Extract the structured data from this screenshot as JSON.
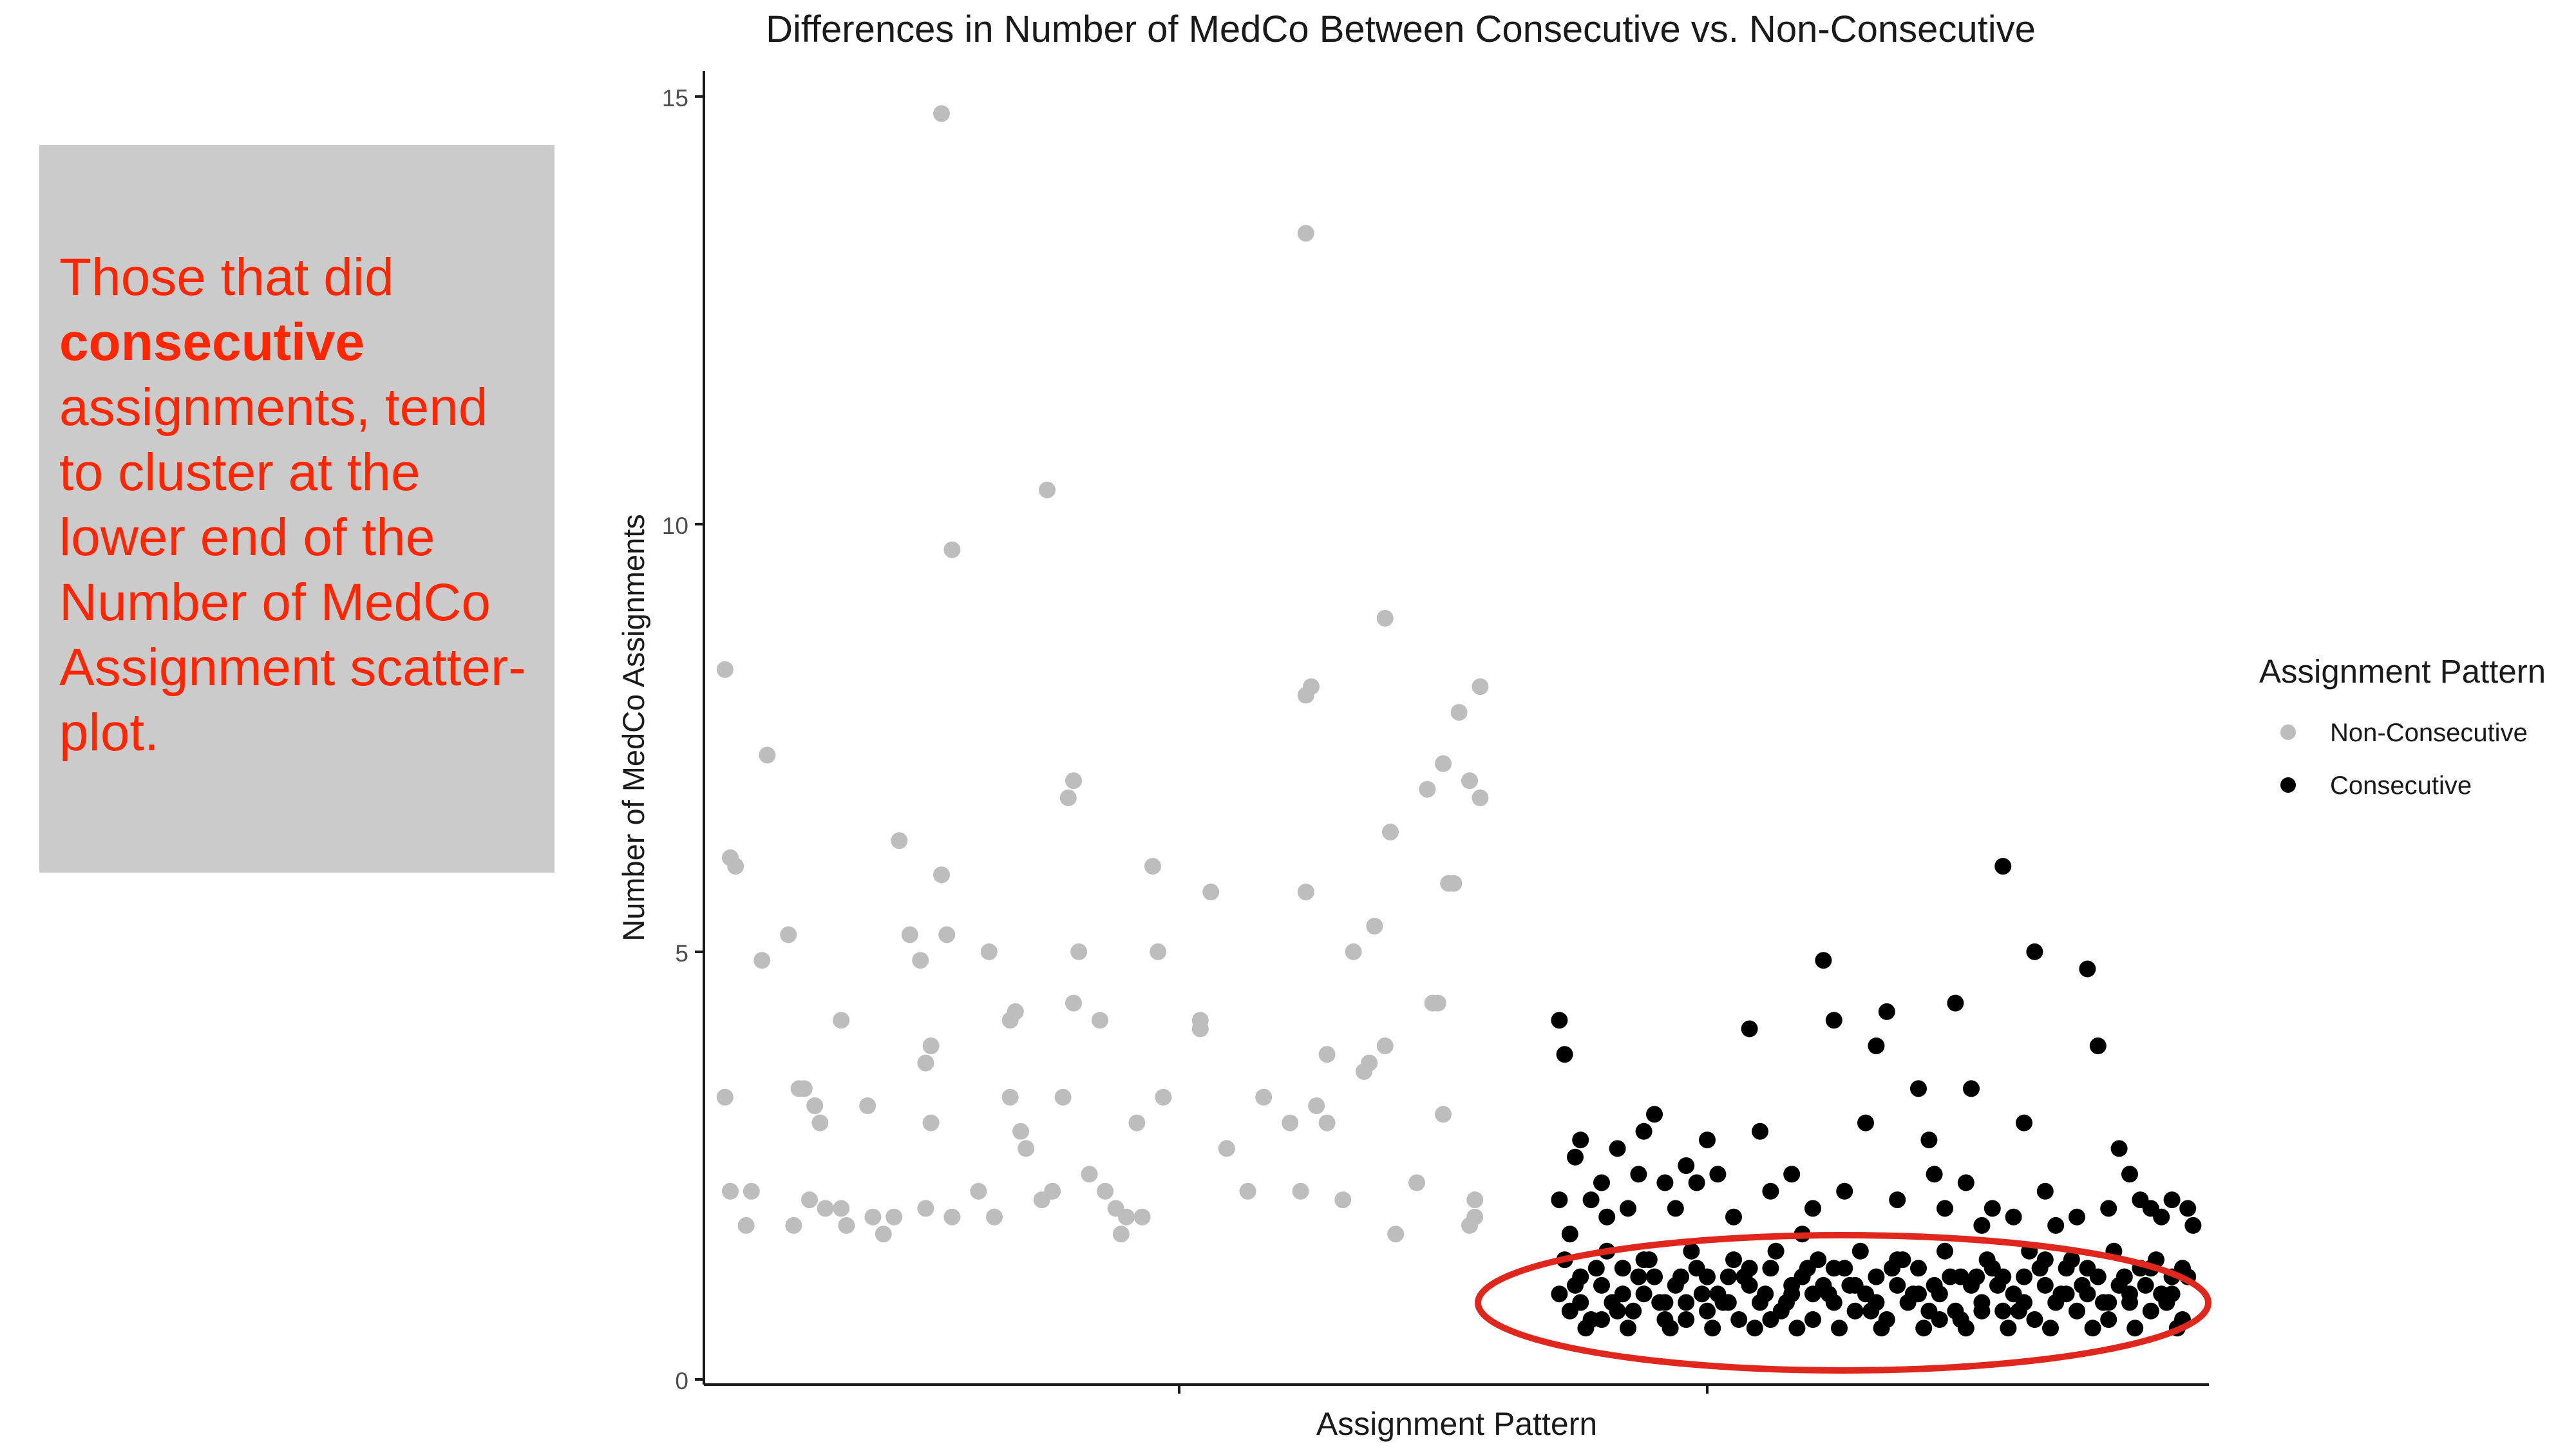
{
  "callout": {
    "line_before": "Those that did",
    "emphasis": "consecutive",
    "line_after": "assignments, tend to cluster at the lower end of the Number of MedCo Assignment scatter-plot.",
    "background": "#cbcbcb",
    "text_color": "#ff2600"
  },
  "highlight_ellipse": {
    "color": "#e0271d"
  },
  "chart_data": {
    "type": "scatter",
    "title": "Differences in Number of MedCo Between Consecutive vs. Non-Consecutive",
    "xlabel": "Assignment Pattern",
    "ylabel": "Number of MedCo Assignments",
    "ylim": [
      0,
      15.3
    ],
    "yticks": [
      0,
      5,
      10,
      15
    ],
    "grid": false,
    "legend": {
      "title": "Assignment Pattern",
      "position": "right",
      "entries": [
        {
          "label": "Non-Consecutive",
          "color": "#bdbdbd"
        },
        {
          "label": "Consecutive",
          "color": "#000000"
        }
      ]
    },
    "series": [
      {
        "name": "Non-Consecutive",
        "color": "#bdbdbd",
        "x_center": 1,
        "jitter": 0.4,
        "points": [
          [
            0.64,
            8.3
          ],
          [
            0.65,
            6.1
          ],
          [
            0.66,
            6.0
          ],
          [
            0.64,
            3.3
          ],
          [
            0.65,
            2.2
          ],
          [
            0.68,
            1.8
          ],
          [
            0.69,
            2.2
          ],
          [
            0.72,
            7.3
          ],
          [
            0.71,
            4.9
          ],
          [
            0.76,
            5.2
          ],
          [
            0.78,
            3.4
          ],
          [
            0.79,
            3.4
          ],
          [
            0.81,
            3.2
          ],
          [
            0.82,
            3.0
          ],
          [
            0.8,
            2.1
          ],
          [
            0.83,
            2.0
          ],
          [
            0.86,
            2.0
          ],
          [
            0.87,
            1.8
          ],
          [
            0.77,
            1.8
          ],
          [
            0.86,
            4.2
          ],
          [
            0.91,
            3.2
          ],
          [
            0.92,
            1.9
          ],
          [
            0.94,
            1.7
          ],
          [
            0.96,
            1.9
          ],
          [
            0.97,
            6.3
          ],
          [
            0.99,
            5.2
          ],
          [
            1.01,
            4.9
          ],
          [
            1.02,
            3.7
          ],
          [
            1.03,
            3.9
          ],
          [
            1.05,
            5.9
          ],
          [
            1.06,
            5.2
          ],
          [
            1.02,
            2.0
          ],
          [
            1.03,
            3.0
          ],
          [
            1.07,
            1.9
          ],
          [
            1.12,
            2.2
          ],
          [
            1.14,
            5.0
          ],
          [
            1.15,
            1.9
          ],
          [
            1.18,
            4.2
          ],
          [
            1.18,
            3.3
          ],
          [
            1.2,
            2.9
          ],
          [
            1.21,
            2.7
          ],
          [
            1.19,
            4.3
          ],
          [
            1.24,
            2.1
          ],
          [
            1.26,
            2.2
          ],
          [
            1.28,
            3.3
          ],
          [
            1.29,
            6.8
          ],
          [
            1.3,
            7.0
          ],
          [
            1.31,
            5.0
          ],
          [
            1.3,
            4.4
          ],
          [
            1.33,
            2.4
          ],
          [
            1.35,
            4.2
          ],
          [
            1.36,
            2.2
          ],
          [
            1.38,
            2.0
          ],
          [
            1.39,
            1.7
          ],
          [
            1.4,
            1.9
          ],
          [
            1.42,
            3.0
          ],
          [
            1.43,
            1.9
          ],
          [
            1.45,
            6.0
          ],
          [
            1.46,
            5.0
          ],
          [
            1.47,
            3.3
          ],
          [
            1.25,
            10.4
          ],
          [
            1.05,
            14.8
          ],
          [
            1.07,
            9.7
          ],
          [
            1.54,
            4.2
          ],
          [
            1.54,
            4.1
          ],
          [
            1.56,
            5.7
          ],
          [
            1.59,
            2.7
          ],
          [
            1.63,
            2.2
          ],
          [
            1.66,
            3.3
          ],
          [
            1.71,
            3.0
          ],
          [
            1.73,
            2.2
          ],
          [
            1.74,
            5.7
          ],
          [
            1.74,
            8.0
          ],
          [
            1.75,
            8.1
          ],
          [
            1.76,
            3.2
          ],
          [
            1.78,
            3.8
          ],
          [
            1.78,
            3.0
          ],
          [
            1.81,
            2.1
          ],
          [
            1.83,
            5.0
          ],
          [
            1.85,
            3.6
          ],
          [
            1.86,
            3.7
          ],
          [
            1.87,
            5.3
          ],
          [
            1.89,
            3.9
          ],
          [
            1.9,
            6.4
          ],
          [
            1.91,
            1.7
          ],
          [
            1.89,
            8.9
          ],
          [
            1.95,
            2.3
          ],
          [
            1.97,
            6.9
          ],
          [
            1.98,
            4.4
          ],
          [
            1.99,
            4.4
          ],
          [
            2.0,
            7.2
          ],
          [
            2.0,
            3.1
          ],
          [
            2.01,
            5.8
          ],
          [
            2.02,
            5.8
          ],
          [
            2.03,
            7.8
          ],
          [
            2.05,
            7.0
          ],
          [
            2.06,
            2.1
          ],
          [
            2.06,
            1.9
          ],
          [
            2.05,
            1.8
          ],
          [
            2.07,
            6.8
          ],
          [
            2.07,
            8.1
          ],
          [
            1.74,
            13.4
          ]
        ]
      },
      {
        "name": "Consecutive",
        "color": "#000000",
        "x_center": 2,
        "jitter": 0.4,
        "points": [
          [
            2.22,
            4.2
          ],
          [
            2.23,
            3.8
          ],
          [
            2.22,
            2.1
          ],
          [
            2.24,
            1.7
          ],
          [
            2.25,
            2.6
          ],
          [
            2.26,
            2.8
          ],
          [
            2.28,
            2.1
          ],
          [
            2.3,
            2.3
          ],
          [
            2.31,
            1.9
          ],
          [
            2.33,
            2.7
          ],
          [
            2.35,
            2.0
          ],
          [
            2.37,
            2.4
          ],
          [
            2.38,
            2.9
          ],
          [
            2.4,
            3.1
          ],
          [
            2.42,
            2.3
          ],
          [
            2.44,
            2.0
          ],
          [
            2.46,
            2.5
          ],
          [
            2.48,
            2.3
          ],
          [
            2.5,
            2.8
          ],
          [
            2.52,
            2.4
          ],
          [
            2.55,
            1.9
          ],
          [
            2.58,
            4.1
          ],
          [
            2.6,
            2.9
          ],
          [
            2.62,
            2.2
          ],
          [
            2.66,
            2.4
          ],
          [
            2.68,
            1.7
          ],
          [
            2.7,
            2.0
          ],
          [
            2.72,
            4.9
          ],
          [
            2.74,
            4.2
          ],
          [
            2.76,
            2.2
          ],
          [
            2.8,
            3.0
          ],
          [
            2.82,
            3.9
          ],
          [
            2.84,
            4.3
          ],
          [
            2.86,
            2.1
          ],
          [
            2.9,
            3.4
          ],
          [
            2.92,
            2.8
          ],
          [
            2.93,
            2.4
          ],
          [
            2.95,
            2.0
          ],
          [
            2.97,
            4.4
          ],
          [
            2.99,
            2.3
          ],
          [
            3.0,
            3.4
          ],
          [
            3.02,
            1.8
          ],
          [
            3.04,
            2.0
          ],
          [
            3.06,
            6.0
          ],
          [
            3.08,
            1.9
          ],
          [
            3.1,
            3.0
          ],
          [
            3.12,
            5.0
          ],
          [
            3.14,
            2.2
          ],
          [
            3.16,
            1.8
          ],
          [
            3.2,
            1.9
          ],
          [
            3.22,
            4.8
          ],
          [
            3.24,
            3.9
          ],
          [
            3.26,
            2.0
          ],
          [
            3.28,
            2.7
          ],
          [
            3.3,
            2.4
          ],
          [
            3.32,
            2.1
          ],
          [
            3.34,
            2.0
          ],
          [
            3.36,
            1.9
          ],
          [
            3.38,
            2.1
          ],
          [
            3.41,
            2.0
          ],
          [
            3.42,
            1.8
          ],
          [
            2.22,
            1.0
          ],
          [
            2.24,
            0.8
          ],
          [
            2.26,
            1.2
          ],
          [
            2.28,
            0.7
          ],
          [
            2.3,
            1.1
          ],
          [
            2.32,
            0.9
          ],
          [
            2.34,
            1.3
          ],
          [
            2.36,
            0.8
          ],
          [
            2.38,
            1.0
          ],
          [
            2.4,
            1.2
          ],
          [
            2.42,
            0.7
          ],
          [
            2.44,
            1.1
          ],
          [
            2.46,
            0.9
          ],
          [
            2.48,
            1.3
          ],
          [
            2.5,
            0.8
          ],
          [
            2.52,
            1.0
          ],
          [
            2.54,
            1.2
          ],
          [
            2.56,
            0.7
          ],
          [
            2.58,
            1.1
          ],
          [
            2.6,
            0.9
          ],
          [
            2.62,
            1.3
          ],
          [
            2.64,
            0.8
          ],
          [
            2.66,
            1.0
          ],
          [
            2.68,
            1.2
          ],
          [
            2.7,
            0.7
          ],
          [
            2.72,
            1.1
          ],
          [
            2.74,
            0.9
          ],
          [
            2.76,
            1.3
          ],
          [
            2.78,
            0.8
          ],
          [
            2.8,
            1.0
          ],
          [
            2.82,
            1.2
          ],
          [
            2.84,
            0.7
          ],
          [
            2.86,
            1.1
          ],
          [
            2.88,
            0.9
          ],
          [
            2.9,
            1.3
          ],
          [
            2.92,
            0.8
          ],
          [
            2.94,
            1.0
          ],
          [
            2.96,
            1.2
          ],
          [
            2.98,
            0.7
          ],
          [
            3.0,
            1.1
          ],
          [
            3.02,
            0.9
          ],
          [
            3.04,
            1.3
          ],
          [
            3.06,
            0.8
          ],
          [
            3.08,
            1.0
          ],
          [
            3.1,
            1.2
          ],
          [
            3.12,
            0.7
          ],
          [
            3.14,
            1.1
          ],
          [
            3.16,
            0.9
          ],
          [
            3.18,
            1.3
          ],
          [
            3.2,
            0.8
          ],
          [
            3.22,
            1.0
          ],
          [
            3.24,
            1.2
          ],
          [
            3.26,
            0.7
          ],
          [
            3.28,
            1.1
          ],
          [
            3.3,
            0.9
          ],
          [
            3.32,
            1.3
          ],
          [
            3.34,
            0.8
          ],
          [
            3.36,
            1.0
          ],
          [
            3.38,
            1.2
          ],
          [
            3.4,
            0.7
          ],
          [
            2.23,
            1.4
          ],
          [
            2.27,
            0.6
          ],
          [
            2.31,
            1.5
          ],
          [
            2.35,
            0.6
          ],
          [
            2.39,
            1.4
          ],
          [
            2.43,
            0.6
          ],
          [
            2.47,
            1.5
          ],
          [
            2.51,
            0.6
          ],
          [
            2.55,
            1.4
          ],
          [
            2.59,
            0.6
          ],
          [
            2.63,
            1.5
          ],
          [
            2.67,
            0.6
          ],
          [
            2.71,
            1.4
          ],
          [
            2.75,
            0.6
          ],
          [
            2.79,
            1.5
          ],
          [
            2.83,
            0.6
          ],
          [
            2.87,
            1.4
          ],
          [
            2.91,
            0.6
          ],
          [
            2.95,
            1.5
          ],
          [
            2.99,
            0.6
          ],
          [
            3.03,
            1.4
          ],
          [
            3.07,
            0.6
          ],
          [
            3.11,
            1.5
          ],
          [
            3.15,
            0.6
          ],
          [
            3.19,
            1.4
          ],
          [
            3.23,
            0.6
          ],
          [
            3.27,
            1.5
          ],
          [
            3.31,
            0.6
          ],
          [
            3.35,
            1.4
          ],
          [
            3.39,
            0.6
          ],
          [
            2.25,
            1.1
          ],
          [
            2.29,
            1.3
          ],
          [
            2.33,
            0.8
          ],
          [
            2.37,
            1.2
          ],
          [
            2.41,
            0.9
          ],
          [
            2.45,
            1.2
          ],
          [
            2.49,
            1.0
          ],
          [
            2.53,
            0.9
          ],
          [
            2.57,
            1.2
          ],
          [
            2.61,
            1.0
          ],
          [
            2.65,
            0.9
          ],
          [
            2.69,
            1.3
          ],
          [
            2.73,
            1.0
          ],
          [
            2.77,
            1.1
          ],
          [
            2.81,
            0.8
          ],
          [
            2.85,
            1.3
          ],
          [
            2.89,
            1.0
          ],
          [
            2.93,
            1.1
          ],
          [
            2.97,
            0.8
          ],
          [
            3.01,
            1.2
          ],
          [
            3.05,
            1.1
          ],
          [
            3.09,
            0.8
          ],
          [
            3.13,
            1.3
          ],
          [
            3.17,
            1.0
          ],
          [
            3.21,
            1.1
          ],
          [
            3.25,
            0.9
          ],
          [
            3.29,
            1.2
          ],
          [
            3.33,
            1.1
          ],
          [
            3.37,
            0.9
          ],
          [
            3.41,
            1.2
          ],
          [
            2.26,
            0.9
          ],
          [
            2.3,
            0.7
          ],
          [
            2.34,
            1.0
          ],
          [
            2.38,
            1.4
          ],
          [
            2.42,
            0.9
          ],
          [
            2.46,
            0.7
          ],
          [
            2.5,
            1.2
          ],
          [
            2.54,
            0.9
          ],
          [
            2.58,
            1.3
          ],
          [
            2.62,
            0.7
          ],
          [
            2.66,
            1.1
          ],
          [
            2.7,
            1.0
          ],
          [
            2.74,
            1.3
          ],
          [
            2.78,
            1.1
          ],
          [
            2.82,
            0.9
          ],
          [
            2.86,
            1.4
          ],
          [
            2.9,
            1.0
          ],
          [
            2.94,
            0.7
          ],
          [
            2.98,
            1.2
          ],
          [
            3.02,
            0.8
          ],
          [
            3.06,
            1.2
          ],
          [
            3.1,
            0.9
          ],
          [
            3.14,
            1.4
          ],
          [
            3.18,
            1.0
          ],
          [
            3.22,
            1.3
          ],
          [
            3.26,
            0.9
          ],
          [
            3.3,
            1.0
          ],
          [
            3.34,
            1.3
          ],
          [
            3.38,
            1.0
          ],
          [
            3.4,
            1.3
          ]
        ]
      }
    ],
    "xcategory_ticks": [
      1,
      2
    ],
    "xlim": [
      0.6,
      3.45
    ]
  }
}
